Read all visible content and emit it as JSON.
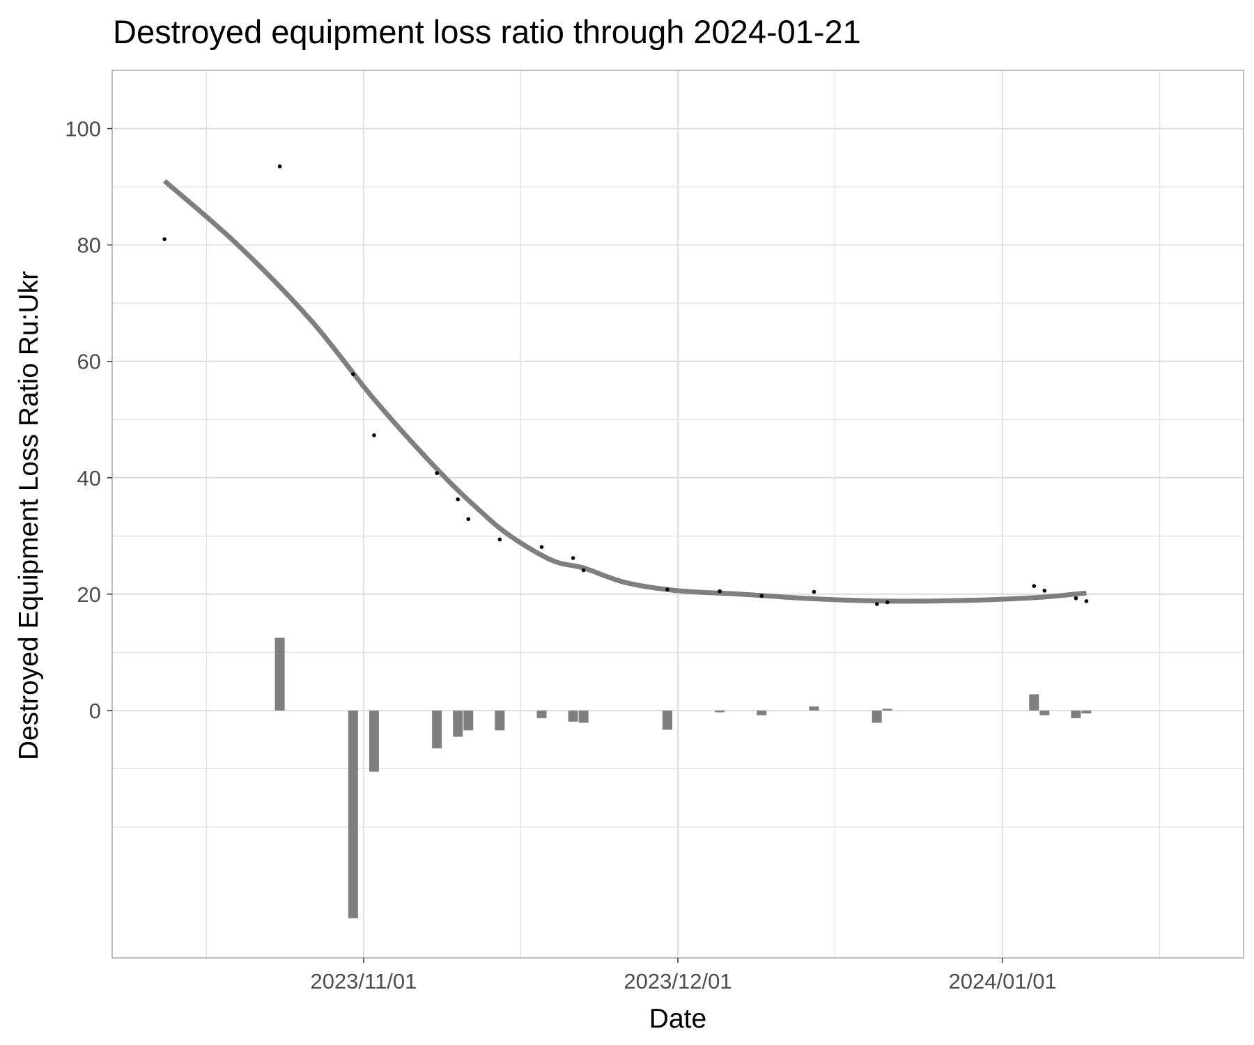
{
  "chart_data": {
    "type": "scatter",
    "title": "Destroyed equipment loss ratio through 2024-01-21",
    "xlabel": "Date",
    "ylabel": "Destroyed Equipment Loss Ratio Ru:Ukr",
    "x_range": [
      "2023-10-08",
      "2024-01-24"
    ],
    "y_range": [
      -42.5,
      110
    ],
    "y_ticks": [
      0,
      20,
      40,
      60,
      80,
      100
    ],
    "y_minor_gridlines": [
      -20,
      -10,
      10,
      30,
      50,
      70,
      90
    ],
    "x_ticks": [
      {
        "date": "2023-11-01",
        "label": "2023/11/01"
      },
      {
        "date": "2023-12-01",
        "label": "2023/12/01"
      },
      {
        "date": "2024-01-01",
        "label": "2024/01/01"
      }
    ],
    "x_minor_gridlines": [
      "2023-10-17",
      "2023-11-16",
      "2023-12-16",
      "2024-01-16"
    ],
    "grid": true,
    "points": [
      {
        "date": "2023-10-13",
        "ratio": 81.0
      },
      {
        "date": "2023-10-24",
        "ratio": 93.5
      },
      {
        "date": "2023-10-31",
        "ratio": 57.8
      },
      {
        "date": "2023-11-02",
        "ratio": 47.3
      },
      {
        "date": "2023-11-08",
        "ratio": 40.8
      },
      {
        "date": "2023-11-10",
        "ratio": 36.3
      },
      {
        "date": "2023-11-11",
        "ratio": 32.9
      },
      {
        "date": "2023-11-14",
        "ratio": 29.4
      },
      {
        "date": "2023-11-18",
        "ratio": 28.1
      },
      {
        "date": "2023-11-21",
        "ratio": 26.2
      },
      {
        "date": "2023-11-22",
        "ratio": 24.1
      },
      {
        "date": "2023-11-30",
        "ratio": 20.8
      },
      {
        "date": "2023-12-05",
        "ratio": 20.5
      },
      {
        "date": "2023-12-09",
        "ratio": 19.7
      },
      {
        "date": "2023-12-14",
        "ratio": 20.4
      },
      {
        "date": "2023-12-20",
        "ratio": 18.3
      },
      {
        "date": "2023-12-21",
        "ratio": 18.6
      },
      {
        "date": "2024-01-04",
        "ratio": 21.4
      },
      {
        "date": "2024-01-05",
        "ratio": 20.6
      },
      {
        "date": "2024-01-08",
        "ratio": 19.3
      },
      {
        "date": "2024-01-09",
        "ratio": 18.8
      }
    ],
    "changes": [
      {
        "date": "2023-10-24",
        "value": 12.5
      },
      {
        "date": "2023-10-31",
        "value": -35.7
      },
      {
        "date": "2023-11-02",
        "value": -10.5
      },
      {
        "date": "2023-11-08",
        "value": -6.5
      },
      {
        "date": "2023-11-10",
        "value": -4.5
      },
      {
        "date": "2023-11-11",
        "value": -3.4
      },
      {
        "date": "2023-11-14",
        "value": -3.4
      },
      {
        "date": "2023-11-18",
        "value": -1.3
      },
      {
        "date": "2023-11-21",
        "value": -1.9
      },
      {
        "date": "2023-11-22",
        "value": -2.1
      },
      {
        "date": "2023-11-30",
        "value": -3.3
      },
      {
        "date": "2023-12-05",
        "value": -0.3
      },
      {
        "date": "2023-12-09",
        "value": -0.8
      },
      {
        "date": "2023-12-14",
        "value": 0.7
      },
      {
        "date": "2023-12-20",
        "value": -2.1
      },
      {
        "date": "2023-12-21",
        "value": 0.3
      },
      {
        "date": "2024-01-04",
        "value": 2.8
      },
      {
        "date": "2024-01-05",
        "value": -0.8
      },
      {
        "date": "2024-01-08",
        "value": -1.3
      },
      {
        "date": "2024-01-09",
        "value": -0.5
      }
    ],
    "smooth_line": [
      {
        "date": "2023-10-13",
        "ratio": 91.0
      },
      {
        "date": "2023-10-20",
        "ratio": 80.0
      },
      {
        "date": "2023-10-27",
        "ratio": 67.0
      },
      {
        "date": "2023-11-02",
        "ratio": 53.5
      },
      {
        "date": "2023-11-08",
        "ratio": 41.5
      },
      {
        "date": "2023-11-12",
        "ratio": 34.5
      },
      {
        "date": "2023-11-15",
        "ratio": 30.0
      },
      {
        "date": "2023-11-19",
        "ratio": 25.8
      },
      {
        "date": "2023-11-22",
        "ratio": 24.5
      },
      {
        "date": "2023-11-26",
        "ratio": 22.0
      },
      {
        "date": "2023-12-01",
        "ratio": 20.6
      },
      {
        "date": "2023-12-07",
        "ratio": 20.0
      },
      {
        "date": "2023-12-14",
        "ratio": 19.2
      },
      {
        "date": "2023-12-21",
        "ratio": 18.8
      },
      {
        "date": "2023-12-28",
        "ratio": 18.9
      },
      {
        "date": "2024-01-04",
        "ratio": 19.4
      },
      {
        "date": "2024-01-09",
        "ratio": 20.2
      }
    ],
    "colors": {
      "points": "#000000",
      "smooth_line": "#7f7f7f",
      "bars": "#7f7f7f",
      "grid": "#dcdcdc",
      "border": "#a6a6a6",
      "tick_text": "#4d4d4d"
    }
  }
}
